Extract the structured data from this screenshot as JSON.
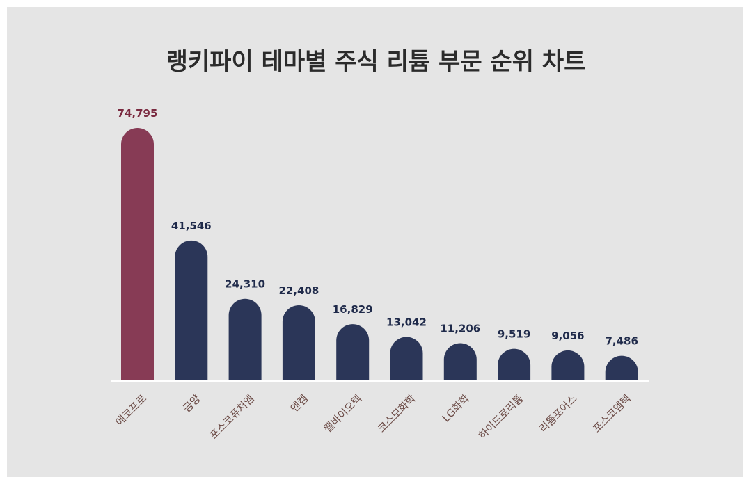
{
  "chart_data": {
    "type": "bar",
    "title": "랭키파이 테마별 주식 리튬 부문 순위 차트",
    "categories": [
      "에코프로",
      "금양",
      "포스코퓨처엠",
      "엔켐",
      "웰바이오텍",
      "코스모화학",
      "LG화학",
      "하이드로리튬",
      "리튬포어스",
      "포스코엠텍"
    ],
    "values": [
      74795,
      41546,
      24310,
      22408,
      16829,
      13042,
      11206,
      9519,
      9056,
      7486
    ],
    "value_labels": [
      "74,795",
      "41,546",
      "24,310",
      "22,408",
      "16,829",
      "13,042",
      "11,206",
      "9,519",
      "9,056",
      "7,486"
    ],
    "highlight_index": 0,
    "ylim": [
      0,
      80000
    ],
    "grid": false,
    "legend": "none"
  },
  "colors": {
    "background": "#e5e5e5",
    "highlight_bar": "#873b55",
    "highlight_label": "#7a2a40",
    "bar": "#2b3658",
    "value_label": "#1f2a4a",
    "category_label": "#6b4a45",
    "baseline": "#ffffff",
    "title": "#2b2b2b"
  }
}
